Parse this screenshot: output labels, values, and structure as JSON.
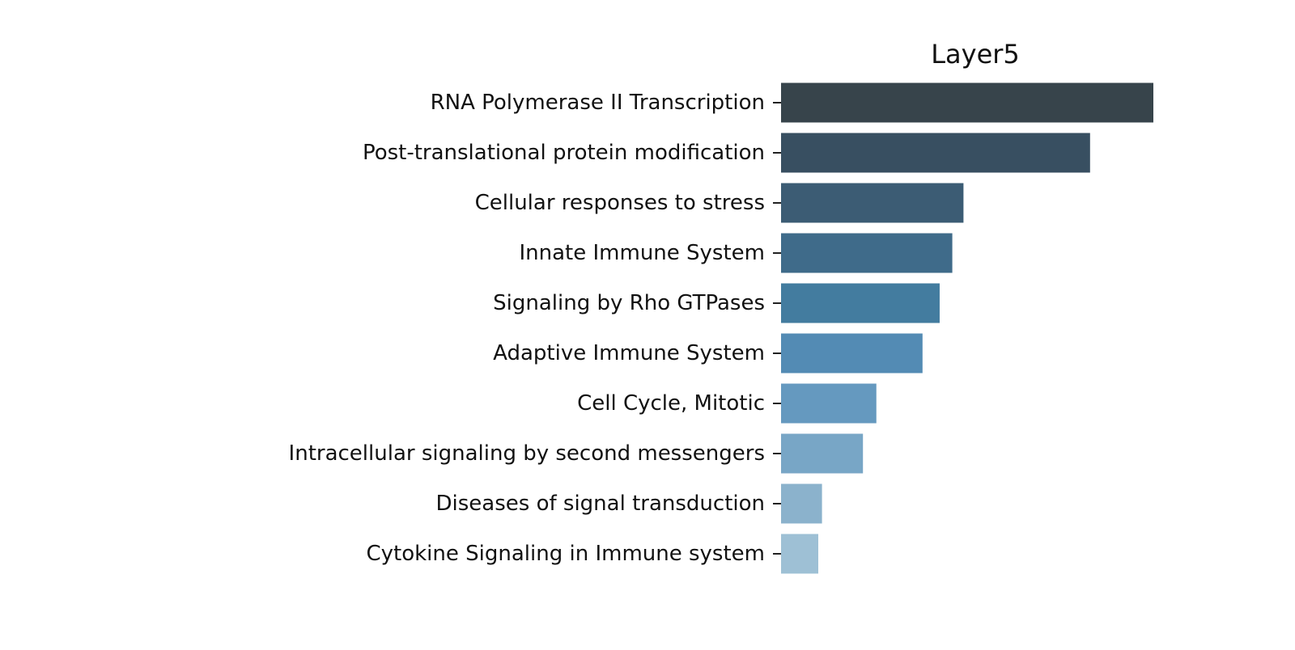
{
  "chart_data": {
    "type": "bar",
    "orientation": "horizontal",
    "title": "Layer5",
    "xlabel": "",
    "ylabel": "",
    "categories": [
      "RNA Polymerase II Transcription",
      "Post-translational protein modification",
      "Cellular responses to stress",
      "Innate Immune System",
      "Signaling by Rho GTPases",
      "Adaptive Immune System",
      "Cell Cycle, Mitotic",
      "Intracellular signaling by second messengers",
      "Diseases of signal transduction",
      "Cytokine Signaling in Immune system"
    ],
    "values": [
      100,
      83,
      49,
      46,
      42.6,
      38,
      25.6,
      22,
      11,
      10
    ],
    "xlim": [
      0,
      100
    ],
    "x_axis_visible": false,
    "grid": false,
    "legend": "none",
    "colors": [
      "#37444b",
      "#384f61",
      "#3c5c74",
      "#3f6b8a",
      "#437c9f",
      "#538bb4",
      "#6599bf",
      "#78a6c6",
      "#8bb2cc",
      "#9ec0d5"
    ]
  }
}
